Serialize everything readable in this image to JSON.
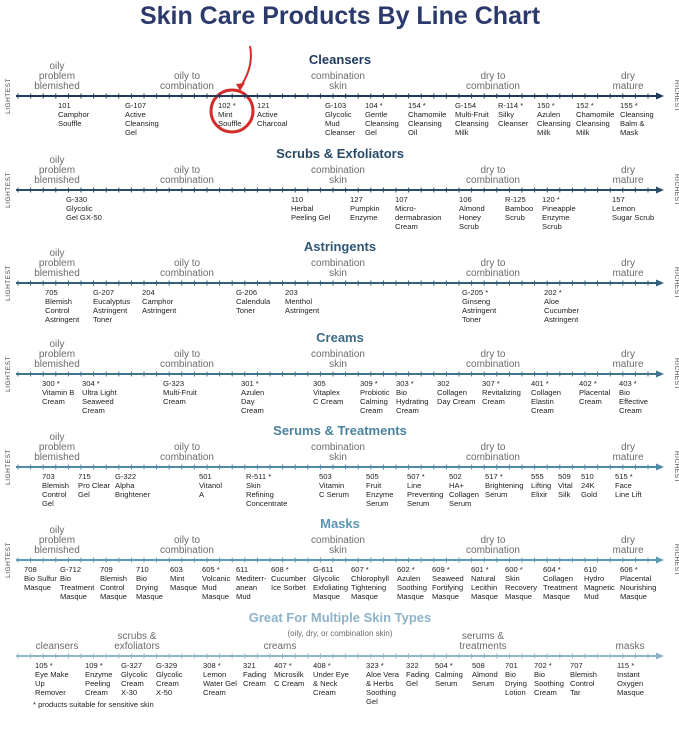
{
  "title": "Skin Care Products By Line Chart",
  "sections": [
    {
      "heading": "Cleansers",
      "lightest": "LIGHTEST",
      "richest": "RICHEST",
      "labels": [
        [
          "oily",
          "problem",
          "blemished"
        ],
        [
          "oily to",
          "combination"
        ],
        [
          "combination",
          "skin"
        ],
        [
          "dry to",
          "combination"
        ],
        [
          "dry",
          "mature"
        ]
      ],
      "products": [
        [
          "101",
          "Camphor",
          "Souffle"
        ],
        [
          "G-107",
          "Active",
          "Cleansing",
          "Gel"
        ],
        [
          "102 *",
          "Mint",
          "Souffle"
        ],
        [
          "121",
          "Active",
          "Charcoal"
        ],
        [
          "G-103",
          "Glycolic",
          "Mud",
          "Cleanser"
        ],
        [
          "104 *",
          "Gentle",
          "Cleansing",
          "Gel"
        ],
        [
          "154 *",
          "Chamomile",
          "Cleansing",
          "Oil"
        ],
        [
          "G-154",
          "Multi-Fruit",
          "Cleansing",
          "Milk"
        ],
        [
          "R-114 *",
          "Silky",
          "Cleanser"
        ],
        [
          "150 *",
          "Azulen",
          "Cleansing",
          "Milk"
        ],
        [
          "152 *",
          "Chamomile",
          "Cleansing",
          "Milk"
        ],
        [
          "155 *",
          "Cleansing",
          "Balm &",
          "Mask"
        ]
      ]
    },
    {
      "heading": "Scrubs & Exfoliators",
      "lightest": "LIGHTEST",
      "richest": "RICHEST",
      "labels": [
        [
          "oily",
          "problem",
          "blemished"
        ],
        [
          "oily to",
          "combination"
        ],
        [
          "combination",
          "skin"
        ],
        [
          "dry to",
          "combination"
        ],
        [
          "dry",
          "mature"
        ]
      ],
      "products": [
        [
          "G-330",
          "Glycolic",
          "Gel GX-50"
        ],
        [
          "110",
          "Herbal",
          "Peeling Gel"
        ],
        [
          "127",
          "Pumpkin",
          "Enzyme"
        ],
        [
          "107",
          "Micro-",
          "dermabrasion",
          "Cream"
        ],
        [
          "106",
          "Almond",
          "Honey",
          "Scrub"
        ],
        [
          "R-125",
          "Bamboo",
          "Scrub"
        ],
        [
          "120 *",
          "Pineapple",
          "Enzyme",
          "Scrub"
        ],
        [
          "157",
          "Lemon",
          "Sugar Scrub"
        ]
      ]
    },
    {
      "heading": "Astringents",
      "lightest": "LIGHTEST",
      "richest": "RICHEST",
      "labels": [
        [
          "oily",
          "problem",
          "blemished"
        ],
        [
          "oily to",
          "combination"
        ],
        [
          "combination",
          "skin"
        ],
        [
          "dry to",
          "combination"
        ],
        [
          "dry",
          "mature"
        ]
      ],
      "products": [
        [
          "705",
          "Blemish",
          "Control",
          "Astringent"
        ],
        [
          "G-207",
          "Eucalyptus",
          "Astringent",
          "Toner"
        ],
        [
          "204",
          "Camphor",
          "Astringent"
        ],
        [
          "G-206",
          "Calendula",
          "Toner"
        ],
        [
          "203",
          "Menthol",
          "Astringent"
        ],
        [
          "G-205 *",
          "Ginseng",
          "Astringent",
          "Toner"
        ],
        [
          "202 *",
          "Aloe",
          "Cucumber",
          "Astringent"
        ]
      ]
    },
    {
      "heading": "Creams",
      "lightest": "LIGHTEST",
      "richest": "RICHEST",
      "labels": [
        [
          "oily",
          "problem",
          "blemished"
        ],
        [
          "oily to",
          "combination"
        ],
        [
          "combination",
          "skin"
        ],
        [
          "dry to",
          "combination"
        ],
        [
          "dry",
          "mature"
        ]
      ],
      "products": [
        [
          "300 *",
          "Vitamin B",
          "Cream"
        ],
        [
          "304 *",
          "Ultra Light",
          "Seaweed",
          "Cream"
        ],
        [
          "G-323",
          "Multi-Fruit",
          "Cream"
        ],
        [
          "301 *",
          "Azulen",
          "Day",
          "Cream"
        ],
        [
          "305",
          "Vitaplex",
          "C Cream"
        ],
        [
          "309 *",
          "Probiotic",
          "Calming",
          "Cream"
        ],
        [
          "303 *",
          "Bio",
          "Hydrating",
          "Cream"
        ],
        [
          "302",
          "Collagen",
          "Day Cream"
        ],
        [
          "307 *",
          "Revitalizing",
          "Cream"
        ],
        [
          "401 *",
          "Collagen",
          "Elastin",
          "Cream"
        ],
        [
          "402 *",
          "Placental",
          "Cream"
        ],
        [
          "403 *",
          "Bio",
          "Effective",
          "Cream"
        ]
      ]
    },
    {
      "heading": "Serums & Treatments",
      "lightest": "LIGHTEST",
      "richest": "RICHEST",
      "labels": [
        [
          "oily",
          "problem",
          "blemished"
        ],
        [
          "oily to",
          "combination"
        ],
        [
          "combination",
          "skin"
        ],
        [
          "dry to",
          "combination"
        ],
        [
          "dry",
          "mature"
        ]
      ],
      "products": [
        [
          "703",
          "Blemish",
          "Control",
          "Gel"
        ],
        [
          "715",
          "Pro Clear",
          "Gel"
        ],
        [
          "G-322",
          "Alpha",
          "Brightener"
        ],
        [
          "501",
          "Vitanol",
          "A"
        ],
        [
          "R-511 *",
          "Skin",
          "Refining",
          "Concentrate"
        ],
        [
          "503",
          "Vitamin",
          "C Serum"
        ],
        [
          "505",
          "Fruit",
          "Enzyme",
          "Serum"
        ],
        [
          "507 *",
          "Line",
          "Preventing",
          "Serum"
        ],
        [
          "502",
          "HA+",
          "Collagen",
          "Serum"
        ],
        [
          "517 *",
          "Brightening",
          "Serum"
        ],
        [
          "555",
          "Lifting",
          "Elixir"
        ],
        [
          "509",
          "Vital",
          "Silk"
        ],
        [
          "510",
          "24K",
          "Gold"
        ],
        [
          "515 *",
          "Face",
          "Line Lift"
        ]
      ]
    },
    {
      "heading": "Masks",
      "lightest": "LIGHTEST",
      "richest": "RICHEST",
      "labels": [
        [
          "oily",
          "problem",
          "blemished"
        ],
        [
          "oily to",
          "combination"
        ],
        [
          "combination",
          "skin"
        ],
        [
          "dry to",
          "combination"
        ],
        [
          "dry",
          "mature"
        ]
      ],
      "products": [
        [
          "708",
          "Bio Sulfur",
          "Masque"
        ],
        [
          "G-712",
          "Bio",
          "Treatment",
          "Masque"
        ],
        [
          "709",
          "Blemish",
          "Control",
          "Masque"
        ],
        [
          "710",
          "Bio",
          "Drying",
          "Masque"
        ],
        [
          "603",
          "Mint",
          "Masque"
        ],
        [
          "605 *",
          "Volcanic",
          "Mud",
          "Masque"
        ],
        [
          "611",
          "Mediterr-",
          "anean",
          "Mud"
        ],
        [
          "608 *",
          "Cucumber",
          "Ice Sorbet"
        ],
        [
          "G-611",
          "Glycolic",
          "Exfoliating",
          "Masque"
        ],
        [
          "607 *",
          "Chlorophyll",
          "Tightening",
          "Masque"
        ],
        [
          "602 *",
          "Azulen",
          "Soothing",
          "Masque"
        ],
        [
          "609 *",
          "Seaweed",
          "Fortifying",
          "Masque"
        ],
        [
          "601 *",
          "Natural",
          "Lecithin",
          "Masque"
        ],
        [
          "600 *",
          "Skin",
          "Recovery",
          "Masque"
        ],
        [
          "604 *",
          "Collagen",
          "Treatment",
          "Masque"
        ],
        [
          "610",
          "Hydro",
          "Magnetic",
          "Mud"
        ],
        [
          "606 *",
          "Placental",
          "Nourishing",
          "Masque"
        ]
      ]
    },
    {
      "heading": "Great For Multiple Skin Types",
      "subtitle": "(oily, dry, or combination skin)",
      "labels": [
        [
          "cleansers"
        ],
        [
          "scrubs &",
          "exfoliators"
        ],
        [
          "creams"
        ],
        [
          "serums &",
          "treatments"
        ],
        [
          "masks"
        ]
      ],
      "products": [
        [
          "105 *",
          "Eye Make",
          "Up",
          "Remover"
        ],
        [
          "109 *",
          "Enzyme",
          "Peeling",
          "Cream"
        ],
        [
          "G-327",
          "Glycolic",
          "Cream",
          "X-30"
        ],
        [
          "G-329",
          "Glycolic",
          "Cream",
          "X-50"
        ],
        [
          "308 *",
          "Lemon",
          "Water Gel",
          "Cream"
        ],
        [
          "321",
          "Fading",
          "Cream"
        ],
        [
          "407 *",
          "Microsilk",
          "C Cream"
        ],
        [
          "408 *",
          "Under Eye",
          "& Neck",
          "Cream"
        ],
        [
          "323 *",
          "Aloe Vera",
          "& Herbs",
          "Soothing",
          "Gel"
        ],
        [
          "322",
          "Fading",
          "Gel"
        ],
        [
          "504 *",
          "Calming",
          "Serum"
        ],
        [
          "508",
          "Almond",
          "Serum"
        ],
        [
          "701",
          "Bio",
          "Drying",
          "Lotion"
        ],
        [
          "702 *",
          "Bio",
          "Soothing",
          "Cream"
        ],
        [
          "707",
          "Blemish",
          "Control",
          "Tar"
        ],
        [
          "115 *",
          "Instant",
          "Oxygen",
          "Masque"
        ]
      ]
    }
  ],
  "footnote": "* products suitable for sensitive skin"
}
